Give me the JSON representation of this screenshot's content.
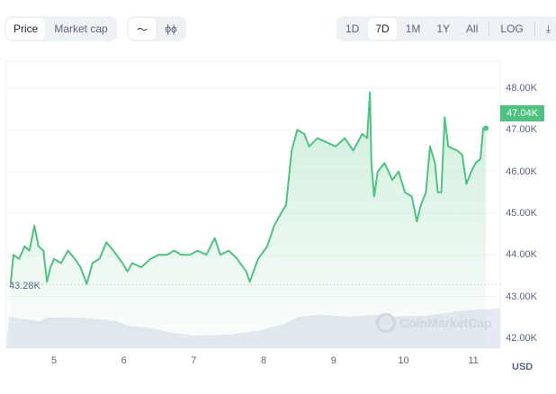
{
  "toolbar": {
    "view_tabs": [
      {
        "label": "Price",
        "active": true
      },
      {
        "label": "Market cap",
        "active": false
      }
    ],
    "chart_types": [
      {
        "icon": "line-chart-icon",
        "glyph": "〜",
        "active": true
      },
      {
        "icon": "candlestick-icon",
        "glyph": "ϕɸ",
        "active": false
      }
    ],
    "ranges": [
      {
        "label": "1D",
        "active": false
      },
      {
        "label": "7D",
        "active": true
      },
      {
        "label": "1M",
        "active": false
      },
      {
        "label": "1Y",
        "active": false
      },
      {
        "label": "All",
        "active": false
      }
    ],
    "log_label": "LOG",
    "download_icon": "download-icon",
    "download_glyph": "⤓"
  },
  "chart_data": {
    "type": "area",
    "x_ticks": [
      "5",
      "6",
      "7",
      "8",
      "9",
      "10",
      "11"
    ],
    "y_ticks": [
      "48.00K",
      "47.00K",
      "46.00K",
      "45.00K",
      "44.00K",
      "43.00K",
      "42.00K"
    ],
    "ylim": [
      41.85,
      48.65
    ],
    "xlim": [
      4.35,
      11.35
    ],
    "currency_label": "USD",
    "current_price_label": "47.04K",
    "low_label": "43.28K",
    "low_value": 43.28,
    "line_color": "#4fc280",
    "watermark": "CoinMarketCap",
    "series": [
      {
        "points": [
          [
            4.38,
            43.3
          ],
          [
            4.42,
            44.0
          ],
          [
            4.5,
            43.9
          ],
          [
            4.58,
            44.2
          ],
          [
            4.65,
            44.1
          ],
          [
            4.72,
            44.7
          ],
          [
            4.78,
            44.2
          ],
          [
            4.85,
            44.1
          ],
          [
            4.9,
            43.35
          ],
          [
            4.95,
            43.7
          ],
          [
            5.0,
            43.9
          ],
          [
            5.1,
            43.8
          ],
          [
            5.2,
            44.1
          ],
          [
            5.3,
            43.9
          ],
          [
            5.38,
            43.7
          ],
          [
            5.47,
            43.3
          ],
          [
            5.55,
            43.8
          ],
          [
            5.65,
            43.9
          ],
          [
            5.75,
            44.3
          ],
          [
            5.85,
            44.1
          ],
          [
            5.98,
            43.8
          ],
          [
            6.05,
            43.6
          ],
          [
            6.12,
            43.8
          ],
          [
            6.25,
            43.7
          ],
          [
            6.38,
            43.9
          ],
          [
            6.5,
            44.0
          ],
          [
            6.62,
            44.0
          ],
          [
            6.72,
            44.1
          ],
          [
            6.82,
            44.0
          ],
          [
            6.95,
            44.0
          ],
          [
            7.05,
            44.1
          ],
          [
            7.18,
            44.0
          ],
          [
            7.3,
            44.4
          ],
          [
            7.38,
            44.0
          ],
          [
            7.5,
            44.1
          ],
          [
            7.62,
            43.9
          ],
          [
            7.75,
            43.6
          ],
          [
            7.8,
            43.35
          ],
          [
            7.92,
            43.9
          ],
          [
            8.05,
            44.2
          ],
          [
            8.15,
            44.7
          ],
          [
            8.25,
            45.0
          ],
          [
            8.32,
            45.2
          ],
          [
            8.4,
            46.5
          ],
          [
            8.48,
            47.0
          ],
          [
            8.58,
            46.9
          ],
          [
            8.65,
            46.6
          ],
          [
            8.77,
            46.8
          ],
          [
            8.9,
            46.7
          ],
          [
            9.03,
            46.6
          ],
          [
            9.16,
            46.8
          ],
          [
            9.28,
            46.5
          ],
          [
            9.41,
            46.9
          ],
          [
            9.48,
            46.8
          ],
          [
            9.52,
            47.9
          ],
          [
            9.54,
            46.2
          ],
          [
            9.58,
            45.4
          ],
          [
            9.63,
            46.0
          ],
          [
            9.73,
            46.2
          ],
          [
            9.84,
            45.8
          ],
          [
            9.93,
            46.0
          ],
          [
            10.02,
            45.5
          ],
          [
            10.12,
            45.4
          ],
          [
            10.19,
            44.8
          ],
          [
            10.25,
            45.2
          ],
          [
            10.32,
            45.5
          ],
          [
            10.38,
            46.6
          ],
          [
            10.45,
            46.2
          ],
          [
            10.49,
            45.5
          ],
          [
            10.54,
            45.5
          ],
          [
            10.59,
            47.3
          ],
          [
            10.64,
            46.6
          ],
          [
            10.77,
            46.5
          ],
          [
            10.84,
            46.4
          ],
          [
            10.9,
            45.7
          ],
          [
            10.97,
            46.0
          ],
          [
            11.03,
            46.2
          ],
          [
            11.1,
            46.3
          ],
          [
            11.14,
            47.04
          ],
          [
            11.18,
            47.04
          ]
        ]
      }
    ]
  }
}
